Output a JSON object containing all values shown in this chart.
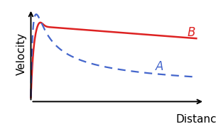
{
  "background_color": "#ffffff",
  "curve_B_color": "#dd2222",
  "curve_A_color": "#4466cc",
  "label_A": "A",
  "label_B": "B",
  "xlabel": "Distance",
  "ylabel": "Velocity",
  "xlabel_fontsize": 11,
  "ylabel_fontsize": 11,
  "label_fontsize": 12,
  "figsize": [
    3.04,
    1.75
  ],
  "dpi": 100
}
